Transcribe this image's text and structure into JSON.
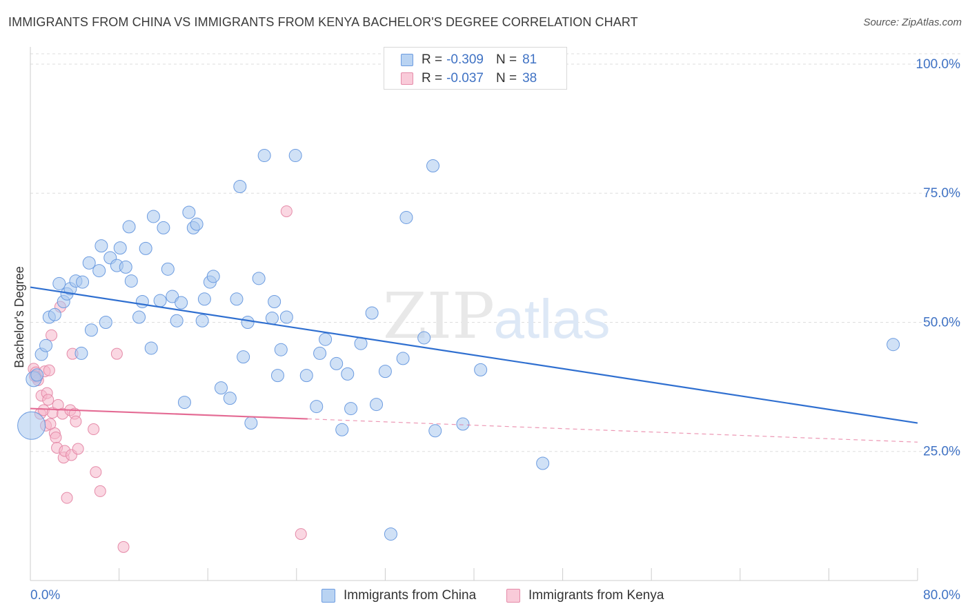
{
  "header": {
    "title": "IMMIGRANTS FROM CHINA VS IMMIGRANTS FROM KENYA BACHELOR'S DEGREE CORRELATION CHART",
    "source": "Source: ZipAtlas.com"
  },
  "watermark": {
    "zip": "ZIP",
    "atlas": "atlas"
  },
  "legend": {
    "r_label": "R =",
    "n_label": "N =",
    "china": {
      "r": "-0.309",
      "n": "81"
    },
    "kenya": {
      "r": "-0.037",
      "n": "38"
    }
  },
  "colors": {
    "china_fill": "#a9c8ef",
    "china_stroke": "#6b9be0",
    "china_line": "#2f6fd0",
    "kenya_fill": "#f6b6ca",
    "kenya_stroke": "#e58aa8",
    "kenya_line": "#e46b94",
    "axis_text": "#3f72c4",
    "grid": "#dddddd"
  },
  "chart_data": {
    "type": "scatter",
    "title": "IMMIGRANTS FROM CHINA VS IMMIGRANTS FROM KENYA BACHELOR'S DEGREE CORRELATION CHART",
    "xlabel": "",
    "ylabel": "Bachelor's Degree",
    "xlim": [
      0,
      80
    ],
    "ylim": [
      0,
      102
    ],
    "x_tick_labels": [
      "0.0%",
      "80.0%"
    ],
    "y_ticks": [
      25,
      50,
      75,
      100
    ],
    "y_tick_labels": [
      "25.0%",
      "50.0%",
      "75.0%",
      "100.0%"
    ],
    "grid": true,
    "series": [
      {
        "name": "Immigrants from China",
        "r": -0.309,
        "n": 81,
        "trend": {
          "x": [
            0,
            80
          ],
          "y": [
            56.8,
            30.5
          ]
        },
        "points": [
          [
            0.1,
            30.0
          ],
          [
            0.3,
            39.0
          ],
          [
            1.0,
            43.8
          ],
          [
            1.4,
            45.5
          ],
          [
            1.7,
            51.0
          ],
          [
            2.2,
            51.5
          ],
          [
            2.6,
            57.5
          ],
          [
            3.0,
            54.0
          ],
          [
            3.3,
            55.5
          ],
          [
            3.6,
            56.5
          ],
          [
            4.1,
            58.0
          ],
          [
            4.7,
            57.8
          ],
          [
            4.6,
            44.0
          ],
          [
            5.3,
            61.5
          ],
          [
            5.5,
            48.5
          ],
          [
            6.2,
            60.0
          ],
          [
            6.4,
            64.8
          ],
          [
            6.8,
            50.0
          ],
          [
            7.2,
            62.5
          ],
          [
            7.8,
            61.0
          ],
          [
            8.1,
            64.4
          ],
          [
            8.6,
            60.7
          ],
          [
            8.9,
            68.5
          ],
          [
            9.1,
            58.0
          ],
          [
            9.8,
            51.0
          ],
          [
            10.1,
            54.0
          ],
          [
            10.4,
            64.3
          ],
          [
            10.9,
            45.0
          ],
          [
            11.1,
            70.5
          ],
          [
            11.7,
            54.2
          ],
          [
            12.0,
            68.3
          ],
          [
            12.4,
            60.3
          ],
          [
            12.8,
            55.0
          ],
          [
            13.2,
            50.3
          ],
          [
            13.6,
            53.8
          ],
          [
            13.9,
            34.5
          ],
          [
            14.3,
            71.3
          ],
          [
            14.7,
            68.3
          ],
          [
            15.0,
            69.0
          ],
          [
            15.5,
            50.3
          ],
          [
            15.7,
            54.5
          ],
          [
            16.2,
            57.8
          ],
          [
            16.5,
            58.9
          ],
          [
            17.2,
            37.3
          ],
          [
            18.0,
            35.3
          ],
          [
            18.6,
            54.5
          ],
          [
            18.9,
            76.3
          ],
          [
            19.2,
            43.3
          ],
          [
            19.6,
            50.0
          ],
          [
            19.9,
            30.5
          ],
          [
            20.6,
            58.5
          ],
          [
            21.1,
            82.3
          ],
          [
            21.8,
            50.8
          ],
          [
            22.0,
            54.0
          ],
          [
            22.3,
            39.7
          ],
          [
            22.6,
            44.7
          ],
          [
            23.1,
            51.0
          ],
          [
            23.9,
            82.3
          ],
          [
            24.9,
            39.7
          ],
          [
            25.8,
            33.7
          ],
          [
            26.1,
            44.0
          ],
          [
            26.6,
            46.7
          ],
          [
            27.6,
            42.0
          ],
          [
            28.1,
            29.2
          ],
          [
            28.6,
            40.0
          ],
          [
            28.9,
            33.3
          ],
          [
            29.8,
            45.9
          ],
          [
            30.8,
            51.8
          ],
          [
            31.2,
            34.1
          ],
          [
            32.0,
            40.5
          ],
          [
            32.5,
            9.0
          ],
          [
            33.6,
            43.0
          ],
          [
            33.9,
            70.3
          ],
          [
            35.5,
            47.0
          ],
          [
            36.3,
            80.3
          ],
          [
            36.5,
            29.0
          ],
          [
            39.0,
            30.3
          ],
          [
            40.6,
            40.8
          ],
          [
            46.2,
            22.7
          ],
          [
            77.8,
            45.7
          ],
          [
            0.6,
            39.8
          ]
        ]
      },
      {
        "name": "Immigrants from Kenya",
        "r": -0.037,
        "n": 38,
        "trend": {
          "x": [
            0,
            25
          ],
          "y": [
            33.3,
            31.3
          ]
        },
        "trend_ext": {
          "x": [
            25,
            80
          ],
          "y": [
            31.3,
            26.8
          ]
        },
        "points": [
          [
            0.3,
            41.0
          ],
          [
            0.5,
            40.3
          ],
          [
            0.6,
            39.3
          ],
          [
            0.7,
            38.8
          ],
          [
            0.9,
            32.3
          ],
          [
            1.0,
            35.8
          ],
          [
            1.2,
            33.0
          ],
          [
            1.3,
            40.5
          ],
          [
            1.4,
            30.0
          ],
          [
            1.5,
            36.3
          ],
          [
            1.6,
            35.0
          ],
          [
            1.7,
            40.7
          ],
          [
            1.8,
            30.3
          ],
          [
            1.9,
            47.5
          ],
          [
            2.0,
            32.5
          ],
          [
            2.2,
            28.5
          ],
          [
            2.3,
            27.7
          ],
          [
            2.4,
            25.7
          ],
          [
            2.5,
            34.0
          ],
          [
            2.7,
            53.0
          ],
          [
            2.9,
            32.3
          ],
          [
            3.0,
            23.8
          ],
          [
            3.1,
            25.1
          ],
          [
            3.3,
            16.0
          ],
          [
            3.6,
            33.0
          ],
          [
            3.7,
            24.3
          ],
          [
            3.8,
            43.9
          ],
          [
            4.0,
            32.3
          ],
          [
            4.1,
            30.8
          ],
          [
            4.3,
            25.5
          ],
          [
            5.7,
            29.3
          ],
          [
            5.9,
            21.0
          ],
          [
            6.3,
            17.3
          ],
          [
            7.8,
            43.9
          ],
          [
            8.4,
            6.5
          ],
          [
            23.1,
            71.5
          ],
          [
            24.4,
            9.0
          ],
          [
            0.4,
            39.6
          ]
        ]
      }
    ]
  },
  "bottom_legend": {
    "china_label": "Immigrants from China",
    "kenya_label": "Immigrants from Kenya"
  }
}
